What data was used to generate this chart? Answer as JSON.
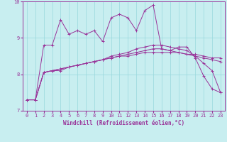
{
  "background_color": "#c8eef0",
  "grid_color": "#98d8dc",
  "line_color": "#993399",
  "xlim": [
    -0.5,
    23.5
  ],
  "ylim": [
    7,
    10
  ],
  "yticks": [
    7,
    8,
    9,
    10
  ],
  "xticks": [
    0,
    1,
    2,
    3,
    4,
    5,
    6,
    7,
    8,
    9,
    10,
    11,
    12,
    13,
    14,
    15,
    16,
    17,
    18,
    19,
    20,
    21,
    22,
    23
  ],
  "xlabel": "Windchill (Refroidissement éolien,°C)",
  "xlabel_fontsize": 5.5,
  "tick_fontsize": 5.0,
  "series1": [
    7.3,
    7.3,
    8.8,
    8.8,
    9.5,
    9.1,
    9.2,
    9.1,
    9.2,
    8.9,
    9.55,
    9.65,
    9.55,
    9.2,
    9.75,
    9.9,
    8.7,
    8.65,
    8.75,
    8.75,
    8.45,
    7.95,
    7.6,
    7.5
  ],
  "series2": [
    7.3,
    7.3,
    8.05,
    8.1,
    8.1,
    8.2,
    8.25,
    8.3,
    8.35,
    8.4,
    8.45,
    8.5,
    8.5,
    8.55,
    8.6,
    8.6,
    8.6,
    8.6,
    8.6,
    8.55,
    8.55,
    8.5,
    8.45,
    8.45
  ],
  "series3": [
    7.3,
    7.3,
    8.05,
    8.1,
    8.15,
    8.2,
    8.25,
    8.3,
    8.35,
    8.4,
    8.45,
    8.5,
    8.55,
    8.6,
    8.65,
    8.7,
    8.7,
    8.65,
    8.6,
    8.55,
    8.5,
    8.45,
    8.4,
    8.35
  ],
  "series4": [
    7.3,
    7.3,
    8.05,
    8.1,
    8.15,
    8.2,
    8.25,
    8.3,
    8.35,
    8.4,
    8.5,
    8.55,
    8.6,
    8.7,
    8.75,
    8.8,
    8.8,
    8.75,
    8.7,
    8.65,
    8.5,
    8.3,
    8.1,
    7.5
  ]
}
